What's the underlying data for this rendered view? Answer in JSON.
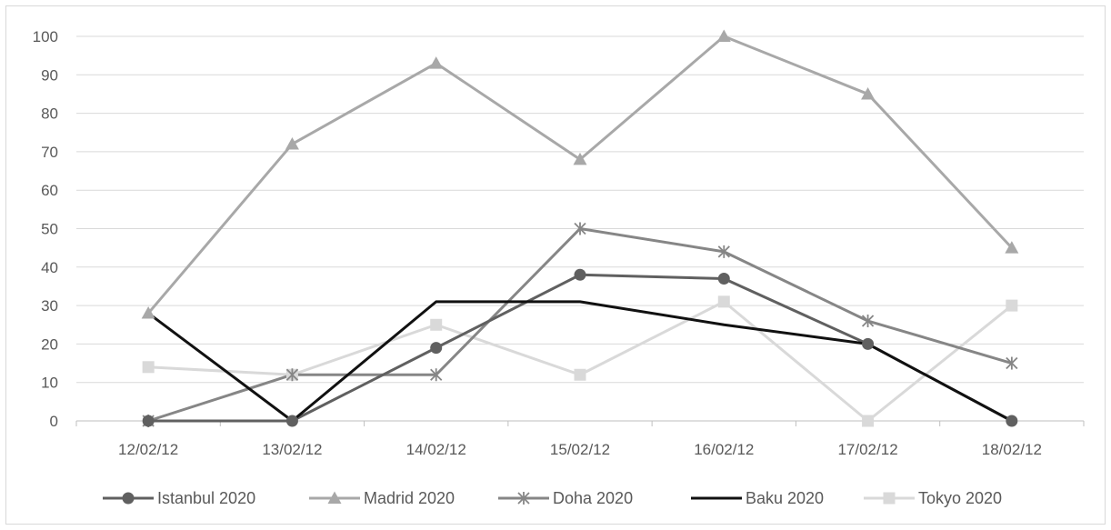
{
  "chart_data": {
    "type": "line",
    "title": "",
    "xlabel": "",
    "ylabel": "",
    "categories": [
      "12/02/12",
      "13/02/12",
      "14/02/12",
      "15/02/12",
      "16/02/12",
      "17/02/12",
      "18/02/12"
    ],
    "ylim": [
      0,
      100
    ],
    "yticks": [
      0,
      10,
      20,
      30,
      40,
      50,
      60,
      70,
      80,
      90,
      100
    ],
    "grid": true,
    "legend_position": "bottom",
    "series": [
      {
        "name": "Istanbul 2020",
        "values": [
          0,
          0,
          19,
          38,
          37,
          20,
          0
        ],
        "color": "#606060",
        "marker": "circle"
      },
      {
        "name": "Madrid 2020",
        "values": [
          28,
          72,
          93,
          68,
          100,
          85,
          45
        ],
        "color": "#a8a8a8",
        "marker": "triangle"
      },
      {
        "name": "Doha 2020",
        "values": [
          0,
          12,
          12,
          50,
          44,
          26,
          15
        ],
        "color": "#868686",
        "marker": "star"
      },
      {
        "name": "Baku 2020",
        "values": [
          28,
          0,
          31,
          31,
          25,
          20,
          0
        ],
        "color": "#111111",
        "marker": "none"
      },
      {
        "name": "Tokyo 2020",
        "values": [
          14,
          12,
          25,
          12,
          31,
          0,
          30
        ],
        "color": "#d9d9d9",
        "marker": "square"
      }
    ]
  }
}
